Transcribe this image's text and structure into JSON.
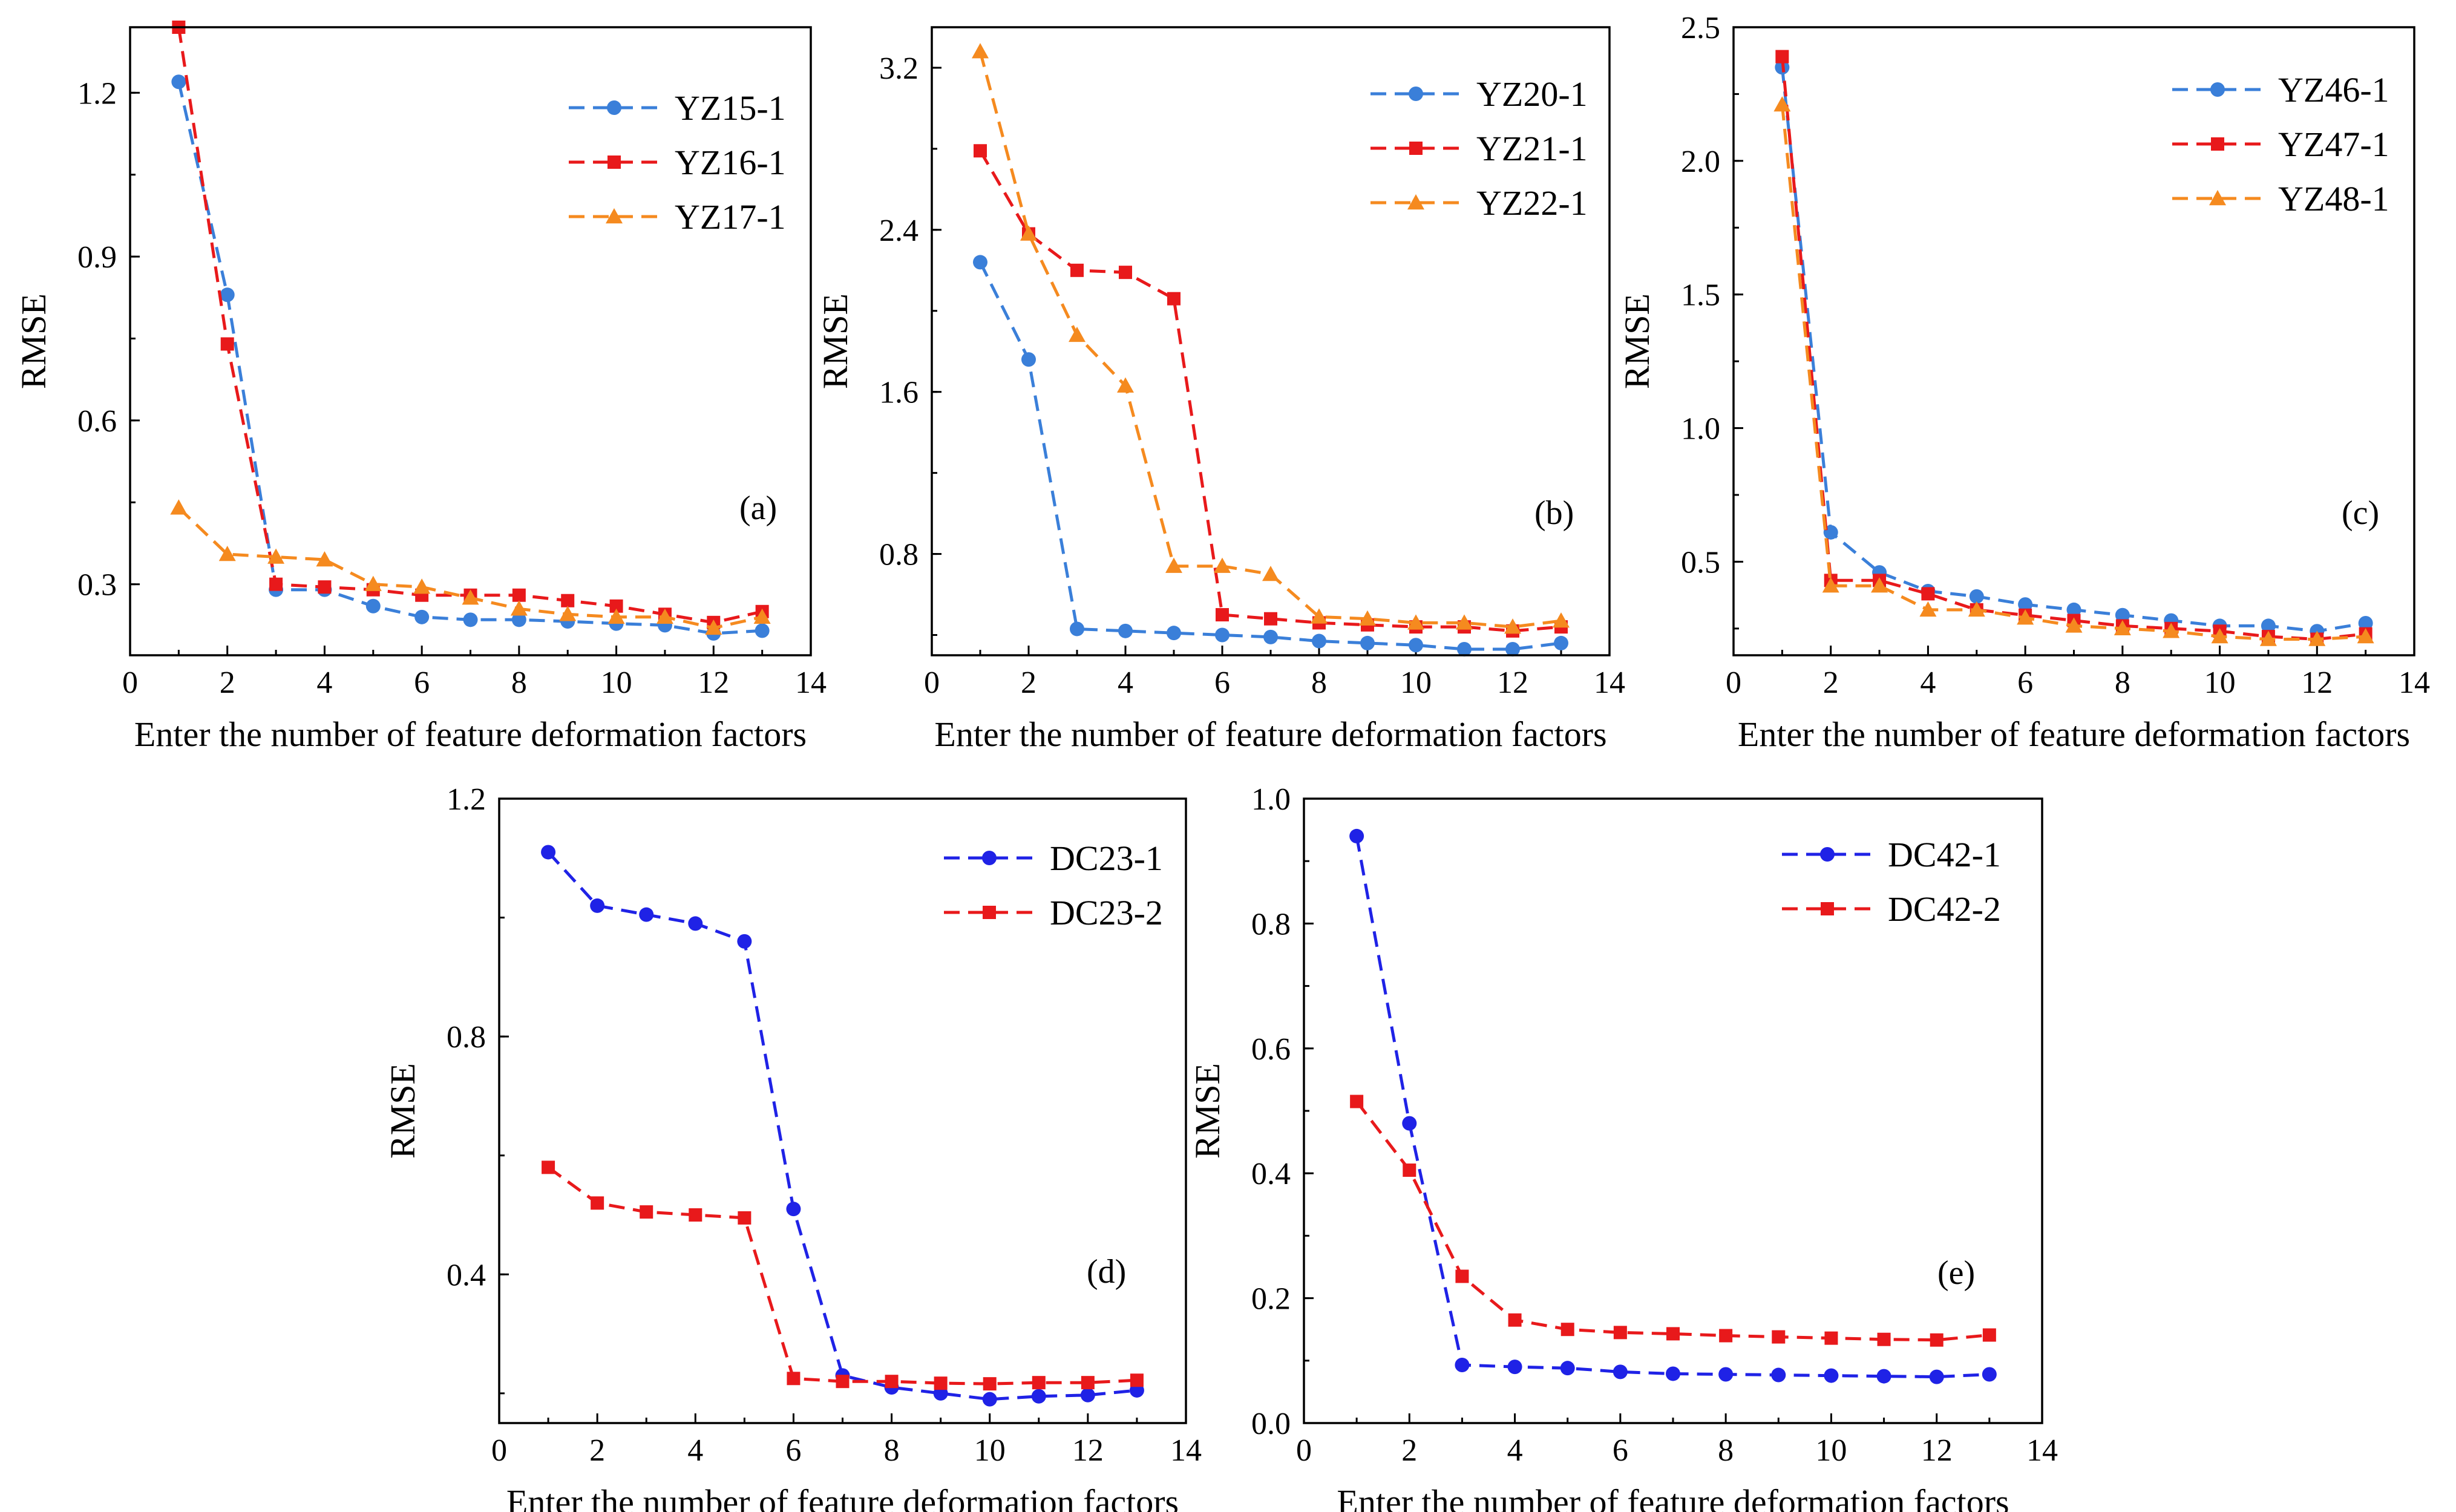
{
  "chart_data": [
    {
      "type": "line",
      "panel_label": "(a)",
      "xlabel": "Enter the number of feature deformation factors",
      "ylabel": "RMSE",
      "xlim": [
        0,
        14
      ],
      "ylim": [
        0.17,
        1.32
      ],
      "xticks": [
        0,
        2,
        4,
        6,
        8,
        10,
        12,
        14
      ],
      "yticks": [
        0.3,
        0.6,
        0.9,
        1.2
      ],
      "ytick_labels": [
        "0.3",
        "0.6",
        "0.9",
        "1.2"
      ],
      "legend": "top-right",
      "x": [
        1,
        2,
        3,
        4,
        5,
        6,
        7,
        8,
        9,
        10,
        11,
        12,
        13
      ],
      "series": [
        {
          "name": "YZ15-1",
          "color": "#3a7fd9",
          "marker": "circle",
          "values": [
            1.22,
            0.83,
            0.29,
            0.29,
            0.26,
            0.24,
            0.235,
            0.235,
            0.232,
            0.228,
            0.225,
            0.21,
            0.215
          ]
        },
        {
          "name": "YZ16-1",
          "color": "#e8191b",
          "marker": "square",
          "values": [
            1.32,
            0.74,
            0.3,
            0.295,
            0.29,
            0.28,
            0.28,
            0.28,
            0.27,
            0.26,
            0.245,
            0.23,
            0.25
          ]
        },
        {
          "name": "YZ17-1",
          "color": "#f58a1f",
          "marker": "triangle",
          "values": [
            0.44,
            0.355,
            0.35,
            0.345,
            0.3,
            0.295,
            0.275,
            0.255,
            0.245,
            0.24,
            0.24,
            0.22,
            0.24
          ]
        }
      ]
    },
    {
      "type": "line",
      "panel_label": "(b)",
      "xlabel": "Enter the number of feature deformation factors",
      "ylabel": "RMSE",
      "xlim": [
        0,
        14
      ],
      "ylim": [
        0.3,
        3.4
      ],
      "xticks": [
        0,
        2,
        4,
        6,
        8,
        10,
        12,
        14
      ],
      "yticks": [
        0.8,
        1.6,
        2.4,
        3.2
      ],
      "ytick_labels": [
        "0.8",
        "1.6",
        "2.4",
        "3.2"
      ],
      "legend": "top-right",
      "x": [
        1,
        2,
        3,
        4,
        5,
        6,
        7,
        8,
        9,
        10,
        11,
        12,
        13
      ],
      "series": [
        {
          "name": "YZ20-1",
          "color": "#3a7fd9",
          "marker": "circle",
          "values": [
            2.24,
            1.76,
            0.43,
            0.42,
            0.41,
            0.4,
            0.39,
            0.37,
            0.36,
            0.35,
            0.33,
            0.33,
            0.36
          ]
        },
        {
          "name": "YZ21-1",
          "color": "#e8191b",
          "marker": "square",
          "values": [
            2.79,
            2.38,
            2.2,
            2.19,
            2.06,
            0.5,
            0.48,
            0.46,
            0.45,
            0.44,
            0.44,
            0.42,
            0.44
          ]
        },
        {
          "name": "YZ22-1",
          "color": "#f58a1f",
          "marker": "triangle",
          "values": [
            3.28,
            2.38,
            1.88,
            1.63,
            0.74,
            0.74,
            0.7,
            0.49,
            0.48,
            0.46,
            0.46,
            0.44,
            0.47
          ]
        }
      ]
    },
    {
      "type": "line",
      "panel_label": "(c)",
      "xlabel": "Enter the number of feature deformation factors",
      "ylabel": "RMSE",
      "xlim": [
        0,
        14
      ],
      "ylim": [
        0.15,
        2.5
      ],
      "xticks": [
        0,
        2,
        4,
        6,
        8,
        10,
        12,
        14
      ],
      "yticks": [
        0.5,
        1.0,
        1.5,
        2.0,
        2.5
      ],
      "ytick_labels": [
        "0.5",
        "1.0",
        "1.5",
        "2.0",
        "2.5"
      ],
      "legend": "top-right",
      "x": [
        1,
        2,
        3,
        4,
        5,
        6,
        7,
        8,
        9,
        10,
        11,
        12,
        13
      ],
      "series": [
        {
          "name": "YZ46-1",
          "color": "#3a7fd9",
          "marker": "circle",
          "values": [
            2.35,
            0.61,
            0.46,
            0.39,
            0.37,
            0.34,
            0.32,
            0.3,
            0.28,
            0.26,
            0.26,
            0.24,
            0.27
          ]
        },
        {
          "name": "YZ47-1",
          "color": "#e8191b",
          "marker": "square",
          "values": [
            2.39,
            0.43,
            0.43,
            0.38,
            0.32,
            0.3,
            0.28,
            0.26,
            0.25,
            0.24,
            0.22,
            0.21,
            0.23
          ]
        },
        {
          "name": "YZ48-1",
          "color": "#f58a1f",
          "marker": "triangle",
          "values": [
            2.21,
            0.41,
            0.41,
            0.32,
            0.32,
            0.29,
            0.26,
            0.25,
            0.24,
            0.22,
            0.21,
            0.21,
            0.22
          ]
        }
      ]
    },
    {
      "type": "line",
      "panel_label": "(d)",
      "xlabel": "Enter the number of feature deformation factors",
      "ylabel": "RMSE",
      "xlim": [
        0,
        14
      ],
      "ylim": [
        0.15,
        1.2
      ],
      "xticks": [
        0,
        2,
        4,
        6,
        8,
        10,
        12,
        14
      ],
      "yticks": [
        0.4,
        0.8,
        1.2
      ],
      "ytick_labels": [
        "0.4",
        "0.8",
        "1.2"
      ],
      "legend": "top-right",
      "x": [
        1,
        2,
        3,
        4,
        5,
        6,
        7,
        8,
        9,
        10,
        11,
        12,
        13
      ],
      "series": [
        {
          "name": "DC23-1",
          "color": "#1f22e6",
          "marker": "circle",
          "values": [
            1.11,
            1.02,
            1.005,
            0.99,
            0.96,
            0.51,
            0.23,
            0.21,
            0.2,
            0.19,
            0.195,
            0.197,
            0.205
          ]
        },
        {
          "name": "DC23-2",
          "color": "#e8191b",
          "marker": "square",
          "values": [
            0.58,
            0.52,
            0.505,
            0.5,
            0.495,
            0.225,
            0.22,
            0.22,
            0.217,
            0.216,
            0.218,
            0.218,
            0.222
          ]
        }
      ]
    },
    {
      "type": "line",
      "panel_label": "(e)",
      "xlabel": "Enter the number of feature deformation factors",
      "ylabel": "RMSE",
      "xlim": [
        0,
        14
      ],
      "ylim": [
        0.0,
        1.0
      ],
      "xticks": [
        0,
        2,
        4,
        6,
        8,
        10,
        12,
        14
      ],
      "yticks": [
        0.0,
        0.2,
        0.4,
        0.6,
        0.8,
        1.0
      ],
      "ytick_labels": [
        "0.0",
        "0.2",
        "0.4",
        "0.6",
        "0.8",
        "1.0"
      ],
      "legend": "top-right",
      "x": [
        1,
        2,
        3,
        4,
        5,
        6,
        7,
        8,
        9,
        10,
        11,
        12,
        13
      ],
      "series": [
        {
          "name": "DC42-1",
          "color": "#1f22e6",
          "marker": "circle",
          "values": [
            0.94,
            0.48,
            0.093,
            0.09,
            0.088,
            0.082,
            0.079,
            0.078,
            0.077,
            0.076,
            0.075,
            0.074,
            0.078
          ]
        },
        {
          "name": "DC42-2",
          "color": "#e8191b",
          "marker": "square",
          "values": [
            0.515,
            0.405,
            0.235,
            0.165,
            0.15,
            0.145,
            0.143,
            0.14,
            0.138,
            0.136,
            0.134,
            0.133,
            0.141
          ]
        }
      ]
    }
  ]
}
